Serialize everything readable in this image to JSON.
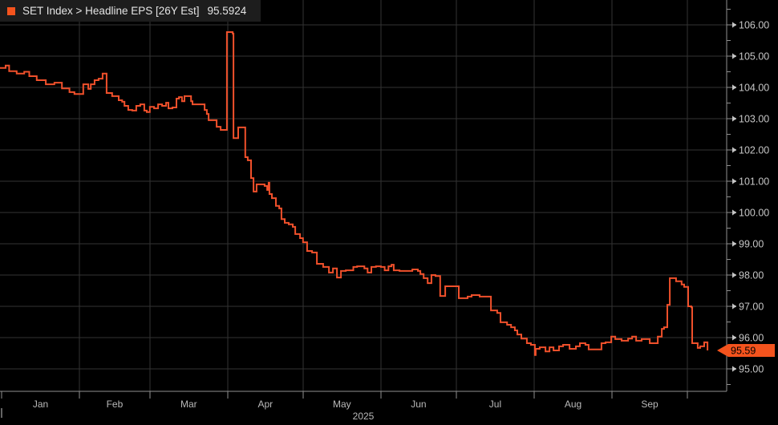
{
  "header": {
    "series_label": "SET Index > Headline EPS [26Y Est]",
    "last_value": "95.5924"
  },
  "colors": {
    "background": "#000000",
    "panel": "#1d1d1d",
    "accent": "#f4531d",
    "line": "#f0502b",
    "grid": "#333333",
    "axis": "#8f8f8f",
    "tick_label": "#c6c6c6",
    "month_label": "#b9b9b9",
    "badge_text": "#000000"
  },
  "chart_data": {
    "type": "line",
    "title": "SET Index > Headline EPS [26Y Est]",
    "subtitle": "",
    "legend_position": "top-left",
    "grid": "on",
    "x_axis": {
      "unit": "day of year 2025",
      "month_labels": [
        "Jan",
        "Feb",
        "Mar",
        "Apr",
        "May",
        "Jun",
        "Jul",
        "Aug",
        "Sep"
      ],
      "month_boundary_days": [
        0,
        31,
        59,
        90,
        120,
        151,
        181,
        212,
        243,
        273
      ],
      "axis_end_day": 289,
      "year_label": "2025"
    },
    "y_axis": {
      "label_min": 95,
      "label_max": 106,
      "label_step": 1,
      "minor_tick_step": 0.5,
      "decimals": 2,
      "ylim": [
        94.3,
        106.8
      ]
    },
    "last_price_marker": {
      "value": 95.59,
      "label": "95.59"
    },
    "series": [
      {
        "name": "Headline EPS [26Y Est]",
        "interpolation": "step-after",
        "points": [
          [
            0,
            104.62
          ],
          [
            1.6,
            104.7
          ],
          [
            3,
            104.52
          ],
          [
            6,
            104.44
          ],
          [
            9,
            104.5
          ],
          [
            11,
            104.36
          ],
          [
            14,
            104.23
          ],
          [
            17.6,
            104.1
          ],
          [
            21,
            104.15
          ],
          [
            24,
            103.97
          ],
          [
            27,
            103.85
          ],
          [
            29,
            103.79
          ],
          [
            32.5,
            104.1
          ],
          [
            34.5,
            103.95
          ],
          [
            35.5,
            104.1
          ],
          [
            37,
            104.23
          ],
          [
            38.6,
            104.28
          ],
          [
            40.2,
            104.44
          ],
          [
            41.8,
            103.82
          ],
          [
            44,
            103.72
          ],
          [
            46.6,
            103.59
          ],
          [
            48,
            103.54
          ],
          [
            48.9,
            103.41
          ],
          [
            50.4,
            103.28
          ],
          [
            52,
            103.26
          ],
          [
            53.6,
            103.41
          ],
          [
            55.2,
            103.46
          ],
          [
            56.8,
            103.26
          ],
          [
            57.8,
            103.21
          ],
          [
            59,
            103.38
          ],
          [
            60.7,
            103.33
          ],
          [
            62.3,
            103.46
          ],
          [
            63.9,
            103.41
          ],
          [
            65.5,
            103.51
          ],
          [
            66.4,
            103.33
          ],
          [
            68,
            103.36
          ],
          [
            69.6,
            103.64
          ],
          [
            70.6,
            103.69
          ],
          [
            71.8,
            103.56
          ],
          [
            72.8,
            103.72
          ],
          [
            75.4,
            103.56
          ],
          [
            76,
            103.46
          ],
          [
            80.8,
            103.28
          ],
          [
            81.7,
            103.15
          ],
          [
            82.4,
            102.95
          ],
          [
            85.6,
            102.74
          ],
          [
            87.2,
            102.64
          ],
          [
            89.7,
            105.77
          ],
          [
            92,
            105.72
          ],
          [
            92.3,
            102.38
          ],
          [
            94.2,
            102.72
          ],
          [
            97,
            101.77
          ],
          [
            98,
            101.67
          ],
          [
            99.3,
            101.1
          ],
          [
            100.3,
            100.67
          ],
          [
            101.5,
            100.9
          ],
          [
            104.7,
            100.85
          ],
          [
            105.7,
            100.72
          ],
          [
            106.3,
            100.95
          ],
          [
            106.6,
            100.59
          ],
          [
            107.6,
            100.46
          ],
          [
            109.2,
            100.21
          ],
          [
            110.5,
            100.13
          ],
          [
            111.4,
            99.79
          ],
          [
            112.7,
            99.67
          ],
          [
            114.3,
            99.62
          ],
          [
            115.9,
            99.54
          ],
          [
            116.9,
            99.31
          ],
          [
            118.8,
            99.18
          ],
          [
            120,
            99.05
          ],
          [
            121.6,
            98.77
          ],
          [
            123.6,
            98.72
          ],
          [
            125.5,
            98.36
          ],
          [
            128,
            98.26
          ],
          [
            130.3,
            98.08
          ],
          [
            131.9,
            98.21
          ],
          [
            133.5,
            97.92
          ],
          [
            135.1,
            98.13
          ],
          [
            137,
            98.15
          ],
          [
            140,
            98.26
          ],
          [
            141.5,
            98.28
          ],
          [
            144.4,
            98.21
          ],
          [
            145.7,
            98.08
          ],
          [
            147.2,
            98.26
          ],
          [
            149,
            98.28
          ],
          [
            151,
            98.26
          ],
          [
            152.5,
            98.15
          ],
          [
            154,
            98.28
          ],
          [
            155.2,
            98.33
          ],
          [
            156.1,
            98.15
          ],
          [
            158.4,
            98.13
          ],
          [
            163.5,
            98.18
          ],
          [
            165.7,
            98.13
          ],
          [
            166.7,
            98.03
          ],
          [
            168,
            97.9
          ],
          [
            169.6,
            97.74
          ],
          [
            171.1,
            98.0
          ],
          [
            172.7,
            97.97
          ],
          [
            174.6,
            97.33
          ],
          [
            176.6,
            97.64
          ],
          [
            182,
            97.26
          ],
          [
            185.5,
            97.31
          ],
          [
            187.1,
            97.36
          ],
          [
            190.3,
            97.31
          ],
          [
            194.8,
            96.87
          ],
          [
            197.3,
            96.79
          ],
          [
            198.6,
            96.49
          ],
          [
            201.2,
            96.41
          ],
          [
            202.8,
            96.33
          ],
          [
            204.3,
            96.23
          ],
          [
            205.3,
            96.1
          ],
          [
            206.9,
            95.97
          ],
          [
            209.1,
            95.82
          ],
          [
            210.7,
            95.77
          ],
          [
            212.3,
            95.44
          ],
          [
            212.6,
            95.64
          ],
          [
            214.2,
            95.69
          ],
          [
            216.5,
            95.56
          ],
          [
            218.1,
            95.69
          ],
          [
            219.7,
            95.59
          ],
          [
            221.9,
            95.72
          ],
          [
            223.5,
            95.77
          ],
          [
            226.1,
            95.64
          ],
          [
            228.6,
            95.72
          ],
          [
            230.2,
            95.82
          ],
          [
            232.4,
            95.77
          ],
          [
            233.7,
            95.62
          ],
          [
            238.2,
            95.62
          ],
          [
            238.8,
            95.82
          ],
          [
            240.4,
            95.85
          ],
          [
            242.7,
            96.03
          ],
          [
            244.3,
            95.95
          ],
          [
            246.8,
            95.9
          ],
          [
            249.4,
            95.97
          ],
          [
            251,
            96.03
          ],
          [
            252.6,
            95.9
          ],
          [
            254.8,
            95.95
          ],
          [
            258,
            95.82
          ],
          [
            261.2,
            96.03
          ],
          [
            262.8,
            96.28
          ],
          [
            263.7,
            96.33
          ],
          [
            265,
            97.05
          ],
          [
            266,
            97.9
          ],
          [
            268.5,
            97.8
          ],
          [
            270.7,
            97.7
          ],
          [
            271.7,
            97.62
          ],
          [
            273.3,
            97.0
          ],
          [
            274.6,
            96.97
          ],
          [
            274.9,
            95.82
          ],
          [
            277.1,
            95.67
          ],
          [
            278.1,
            95.72
          ],
          [
            279.7,
            95.85
          ],
          [
            281,
            95.59
          ]
        ]
      }
    ]
  }
}
